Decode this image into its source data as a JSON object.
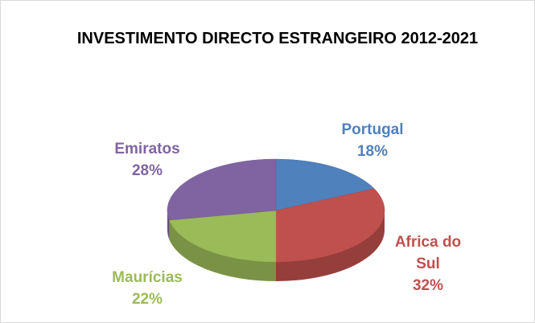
{
  "chart_data": {
    "type": "pie",
    "title": "INVESTIMENTO DIRECTO ESTRANGEIRO 2012-2021",
    "categories": [
      "Portugal",
      "Africa do Sul",
      "Maurícias",
      "Emiratos"
    ],
    "values": [
      18,
      32,
      22,
      28
    ],
    "value_labels": [
      "18%",
      "32%",
      "22%",
      "28%"
    ],
    "colors": [
      "#4f81bd",
      "#c0504d",
      "#9bbb59",
      "#8064a2"
    ]
  }
}
